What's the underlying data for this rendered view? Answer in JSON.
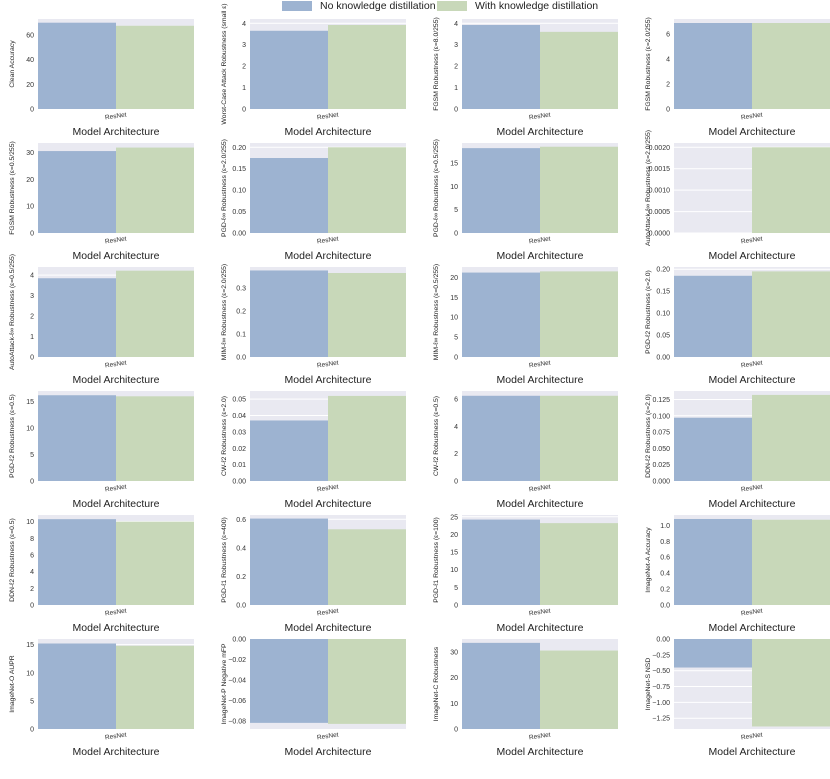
{
  "legend": {
    "items": [
      {
        "label": "No knowledge distillation",
        "color": "#9db3d1"
      },
      {
        "label": "With knowledge distillation",
        "color": "#c8d8b9"
      }
    ]
  },
  "colors": {
    "background": "#e9e9f1",
    "grid": "#ffffff",
    "series_1": "#9db3d1",
    "series_2": "#c8d8b9"
  },
  "chart_data": [
    {
      "type": "bar",
      "categories": [
        "ResNet"
      ],
      "series": [
        {
          "name": "No knowledge distillation",
          "values": [
            70
          ]
        },
        {
          "name": "With knowledge distillation",
          "values": [
            67.5
          ]
        }
      ],
      "xlabel": "Model Architecture",
      "ylabel": "Clean Accuracy",
      "ylim": [
        0,
        73
      ],
      "yticks": [
        0,
        20,
        40,
        60
      ],
      "ytick_labels": [
        "0",
        "20",
        "40",
        "60"
      ]
    },
    {
      "type": "bar",
      "categories": [
        "ResNet"
      ],
      "series": [
        {
          "name": "No knowledge distillation",
          "values": [
            3.65
          ]
        },
        {
          "name": "With knowledge distillation",
          "values": [
            3.92
          ]
        }
      ],
      "xlabel": "Model Architecture",
      "ylabel": "Worst-Case Attack Robustness (small ε)",
      "ylim": [
        0,
        4.2
      ],
      "yticks": [
        0,
        1,
        2,
        3,
        4
      ],
      "ytick_labels": [
        "0",
        "1",
        "2",
        "3",
        "4"
      ]
    },
    {
      "type": "bar",
      "categories": [
        "ResNet"
      ],
      "series": [
        {
          "name": "No knowledge distillation",
          "values": [
            3.92
          ]
        },
        {
          "name": "With knowledge distillation",
          "values": [
            3.6
          ]
        }
      ],
      "xlabel": "Model Architecture",
      "ylabel": "FGSM Robustness (ε=8.0/255)",
      "ylim": [
        0,
        4.2
      ],
      "yticks": [
        0,
        1,
        2,
        3,
        4
      ],
      "ytick_labels": [
        "0",
        "1",
        "2",
        "3",
        "4"
      ]
    },
    {
      "type": "bar",
      "categories": [
        "ResNet"
      ],
      "series": [
        {
          "name": "No knowledge distillation",
          "values": [
            6.88
          ]
        },
        {
          "name": "With knowledge distillation",
          "values": [
            6.88
          ]
        }
      ],
      "xlabel": "Model Architecture",
      "ylabel": "FGSM Robustness (ε=2.0/255)",
      "ylim": [
        0,
        7.2
      ],
      "yticks": [
        0,
        2,
        4,
        6
      ],
      "ytick_labels": [
        "0",
        "2",
        "4",
        "6"
      ]
    },
    {
      "type": "bar",
      "categories": [
        "ResNet"
      ],
      "series": [
        {
          "name": "No knowledge distillation",
          "values": [
            30.5
          ]
        },
        {
          "name": "With knowledge distillation",
          "values": [
            31.8
          ]
        }
      ],
      "xlabel": "Model Architecture",
      "ylabel": "FGSM Robustness (ε=0.5/255)",
      "ylim": [
        0,
        33.5
      ],
      "yticks": [
        0,
        10,
        20,
        30
      ],
      "ytick_labels": [
        "0",
        "10",
        "20",
        "30"
      ]
    },
    {
      "type": "bar",
      "categories": [
        "ResNet"
      ],
      "series": [
        {
          "name": "No knowledge distillation",
          "values": [
            0.175
          ]
        },
        {
          "name": "With knowledge distillation",
          "values": [
            0.2
          ]
        }
      ],
      "xlabel": "Model Architecture",
      "ylabel": "PGD-ℓ∞ Robustness (ε=2.0/255)",
      "ylim": [
        0,
        0.21
      ],
      "yticks": [
        0,
        0.05,
        0.1,
        0.15,
        0.2
      ],
      "ytick_labels": [
        "0.00",
        "0.05",
        "0.10",
        "0.15",
        "0.20"
      ]
    },
    {
      "type": "bar",
      "categories": [
        "ResNet"
      ],
      "series": [
        {
          "name": "No knowledge distillation",
          "values": [
            18.2
          ]
        },
        {
          "name": "With knowledge distillation",
          "values": [
            18.5
          ]
        }
      ],
      "xlabel": "Model Architecture",
      "ylabel": "PGD-ℓ∞ Robustness (ε=0.5/255)",
      "ylim": [
        0,
        19.3
      ],
      "yticks": [
        0,
        5,
        10,
        15
      ],
      "ytick_labels": [
        "0",
        "5",
        "10",
        "15"
      ]
    },
    {
      "type": "bar",
      "categories": [
        "ResNet"
      ],
      "series": [
        {
          "name": "No knowledge distillation",
          "values": [
            0
          ]
        },
        {
          "name": "With knowledge distillation",
          "values": [
            0.002
          ]
        }
      ],
      "xlabel": "Model Architecture",
      "ylabel": "AutoAttack-ℓ∞ Robustness (ε=2.0/255)",
      "ylim": [
        0,
        0.0021
      ],
      "yticks": [
        0,
        0.0005,
        0.001,
        0.0015,
        0.002
      ],
      "ytick_labels": [
        "0.0000",
        "0.0005",
        "0.0010",
        "0.0015",
        "0.0020"
      ]
    },
    {
      "type": "bar",
      "categories": [
        "ResNet"
      ],
      "series": [
        {
          "name": "No knowledge distillation",
          "values": [
            3.85
          ]
        },
        {
          "name": "With knowledge distillation",
          "values": [
            4.22
          ]
        }
      ],
      "xlabel": "Model Architecture",
      "ylabel": "AutoAttack-ℓ∞ Robustness (ε=0.5/255)",
      "ylim": [
        0,
        4.4
      ],
      "yticks": [
        0,
        1,
        2,
        3,
        4
      ],
      "ytick_labels": [
        "0",
        "1",
        "2",
        "3",
        "4"
      ]
    },
    {
      "type": "bar",
      "categories": [
        "ResNet"
      ],
      "series": [
        {
          "name": "No knowledge distillation",
          "values": [
            0.375
          ]
        },
        {
          "name": "With knowledge distillation",
          "values": [
            0.364
          ]
        }
      ],
      "xlabel": "Model Architecture",
      "ylabel": "MIM-ℓ∞ Robustness (ε=2.0/255)",
      "ylim": [
        0,
        0.39
      ],
      "yticks": [
        0,
        0.1,
        0.2,
        0.3
      ],
      "ytick_labels": [
        "0.0",
        "0.1",
        "0.2",
        "0.3"
      ]
    },
    {
      "type": "bar",
      "categories": [
        "ResNet"
      ],
      "series": [
        {
          "name": "No knowledge distillation",
          "values": [
            21.2
          ]
        },
        {
          "name": "With knowledge distillation",
          "values": [
            21.5
          ]
        }
      ],
      "xlabel": "Model Architecture",
      "ylabel": "MIM-ℓ∞ Robustness (ε=0.5/255)",
      "ylim": [
        0,
        22.6
      ],
      "yticks": [
        0,
        5,
        10,
        15,
        20
      ],
      "ytick_labels": [
        "0",
        "5",
        "10",
        "15",
        "20"
      ]
    },
    {
      "type": "bar",
      "categories": [
        "ResNet"
      ],
      "series": [
        {
          "name": "No knowledge distillation",
          "values": [
            0.185
          ]
        },
        {
          "name": "With knowledge distillation",
          "values": [
            0.195
          ]
        }
      ],
      "xlabel": "Model Architecture",
      "ylabel": "PGD-ℓ2 Robustness (ε=2.0)",
      "ylim": [
        0,
        0.205
      ],
      "yticks": [
        0,
        0.05,
        0.1,
        0.15,
        0.2
      ],
      "ytick_labels": [
        "0.00",
        "0.05",
        "0.10",
        "0.15",
        "0.20"
      ]
    },
    {
      "type": "bar",
      "categories": [
        "ResNet"
      ],
      "series": [
        {
          "name": "No knowledge distillation",
          "values": [
            16.2
          ]
        },
        {
          "name": "With knowledge distillation",
          "values": [
            16
          ]
        }
      ],
      "xlabel": "Model Architecture",
      "ylabel": "PGD-ℓ2 Robustness (ε=0.5)",
      "ylim": [
        0,
        17
      ],
      "yticks": [
        0,
        5,
        10,
        15
      ],
      "ytick_labels": [
        "0",
        "5",
        "10",
        "15"
      ]
    },
    {
      "type": "bar",
      "categories": [
        "ResNet"
      ],
      "series": [
        {
          "name": "No knowledge distillation",
          "values": [
            0.037
          ]
        },
        {
          "name": "With knowledge distillation",
          "values": [
            0.052
          ]
        }
      ],
      "xlabel": "Model Architecture",
      "ylabel": "CW-ℓ2 Robustness (ε=2.0)",
      "ylim": [
        0,
        0.055
      ],
      "yticks": [
        0,
        0.01,
        0.02,
        0.03,
        0.04,
        0.05
      ],
      "ytick_labels": [
        "0.00",
        "0.01",
        "0.02",
        "0.03",
        "0.04",
        "0.05"
      ]
    },
    {
      "type": "bar",
      "categories": [
        "ResNet"
      ],
      "series": [
        {
          "name": "No knowledge distillation",
          "values": [
            6.25
          ]
        },
        {
          "name": "With knowledge distillation",
          "values": [
            6.25
          ]
        }
      ],
      "xlabel": "Model Architecture",
      "ylabel": "CW-ℓ2 Robustness (ε=0.5)",
      "ylim": [
        0,
        6.6
      ],
      "yticks": [
        0,
        2,
        4,
        6
      ],
      "ytick_labels": [
        "0",
        "2",
        "4",
        "6"
      ]
    },
    {
      "type": "bar",
      "categories": [
        "ResNet"
      ],
      "series": [
        {
          "name": "No knowledge distillation",
          "values": [
            0.097
          ]
        },
        {
          "name": "With knowledge distillation",
          "values": [
            0.132
          ]
        }
      ],
      "xlabel": "Model Architecture",
      "ylabel": "DDN-ℓ2 Robustness (ε=2.0)",
      "ylim": [
        0,
        0.138
      ],
      "yticks": [
        0,
        0.025,
        0.05,
        0.075,
        0.1,
        0.125
      ],
      "ytick_labels": [
        "0.000",
        "0.025",
        "0.050",
        "0.075",
        "0.100",
        "0.125"
      ]
    },
    {
      "type": "bar",
      "categories": [
        "ResNet"
      ],
      "series": [
        {
          "name": "No knowledge distillation",
          "values": [
            10.3
          ]
        },
        {
          "name": "With knowledge distillation",
          "values": [
            10
          ]
        }
      ],
      "xlabel": "Model Architecture",
      "ylabel": "DDN-ℓ2 Robustness (ε=0.5)",
      "ylim": [
        0,
        10.8
      ],
      "yticks": [
        0,
        2,
        4,
        6,
        8,
        10
      ],
      "ytick_labels": [
        "0",
        "2",
        "4",
        "6",
        "8",
        "10"
      ]
    },
    {
      "type": "bar",
      "categories": [
        "ResNet"
      ],
      "series": [
        {
          "name": "No knowledge distillation",
          "values": [
            0.605
          ]
        },
        {
          "name": "With knowledge distillation",
          "values": [
            0.53
          ]
        }
      ],
      "xlabel": "Model Architecture",
      "ylabel": "PGD-ℓ1 Robustness (ε=400)",
      "ylim": [
        0,
        0.63
      ],
      "yticks": [
        0,
        0.2,
        0.4,
        0.6
      ],
      "ytick_labels": [
        "0.0",
        "0.2",
        "0.4",
        "0.6"
      ]
    },
    {
      "type": "bar",
      "categories": [
        "ResNet"
      ],
      "series": [
        {
          "name": "No knowledge distillation",
          "values": [
            24.2
          ]
        },
        {
          "name": "With knowledge distillation",
          "values": [
            23.2
          ]
        }
      ],
      "xlabel": "Model Architecture",
      "ylabel": "PGD-ℓ1 Robustness (ε=100)",
      "ylim": [
        0,
        25.5
      ],
      "yticks": [
        0,
        5,
        10,
        15,
        20,
        25
      ],
      "ytick_labels": [
        "0",
        "5",
        "10",
        "15",
        "20",
        "25"
      ]
    },
    {
      "type": "bar",
      "categories": [
        "ResNet"
      ],
      "series": [
        {
          "name": "No knowledge distillation",
          "values": [
            1.08
          ]
        },
        {
          "name": "With knowledge distillation",
          "values": [
            1.07
          ]
        }
      ],
      "xlabel": "Model Architecture",
      "ylabel": "ImageNet-A Accuracy",
      "ylim": [
        0,
        1.13
      ],
      "yticks": [
        0,
        0.2,
        0.4,
        0.6,
        0.8,
        1.0
      ],
      "ytick_labels": [
        "0.0",
        "0.2",
        "0.4",
        "0.6",
        "0.8",
        "1.0"
      ]
    },
    {
      "type": "bar",
      "categories": [
        "ResNet"
      ],
      "series": [
        {
          "name": "No knowledge distillation",
          "values": [
            15.2
          ]
        },
        {
          "name": "With knowledge distillation",
          "values": [
            14.8
          ]
        }
      ],
      "xlabel": "Model Architecture",
      "ylabel": "ImageNet-O AUPR",
      "ylim": [
        0,
        16
      ],
      "yticks": [
        0,
        5,
        10,
        15
      ],
      "ytick_labels": [
        "0",
        "5",
        "10",
        "15"
      ]
    },
    {
      "type": "bar",
      "categories": [
        "ResNet"
      ],
      "series": [
        {
          "name": "No knowledge distillation",
          "values": [
            -0.082
          ]
        },
        {
          "name": "With knowledge distillation",
          "values": [
            -0.083
          ]
        }
      ],
      "xlabel": "Model Architecture",
      "ylabel": "ImageNet-P Negative mFP",
      "ylim": [
        -0.088,
        0
      ],
      "yticks": [
        0,
        -0.02,
        -0.04,
        -0.06,
        -0.08
      ],
      "ytick_labels": [
        "0.00",
        "−0.02",
        "−0.04",
        "−0.06",
        "−0.08"
      ]
    },
    {
      "type": "bar",
      "categories": [
        "ResNet"
      ],
      "series": [
        {
          "name": "No knowledge distillation",
          "values": [
            33.5
          ]
        },
        {
          "name": "With knowledge distillation",
          "values": [
            30.5
          ]
        }
      ],
      "xlabel": "Model Architecture",
      "ylabel": "ImageNet-C Robustness",
      "ylim": [
        0,
        35
      ],
      "yticks": [
        0,
        10,
        20,
        30
      ],
      "ytick_labels": [
        "0",
        "10",
        "20",
        "30"
      ]
    },
    {
      "type": "bar",
      "categories": [
        "ResNet"
      ],
      "series": [
        {
          "name": "No knowledge distillation",
          "values": [
            -0.45
          ]
        },
        {
          "name": "With knowledge distillation",
          "values": [
            -1.38
          ]
        }
      ],
      "xlabel": "Model Architecture",
      "ylabel": "ImageNet-S NSD",
      "ylim": [
        -1.42,
        0
      ],
      "yticks": [
        0,
        -0.25,
        -0.5,
        -0.75,
        -1.0,
        -1.25
      ],
      "ytick_labels": [
        "0.00",
        "−0.25",
        "−0.50",
        "−0.75",
        "−1.00",
        "−1.25"
      ]
    }
  ]
}
